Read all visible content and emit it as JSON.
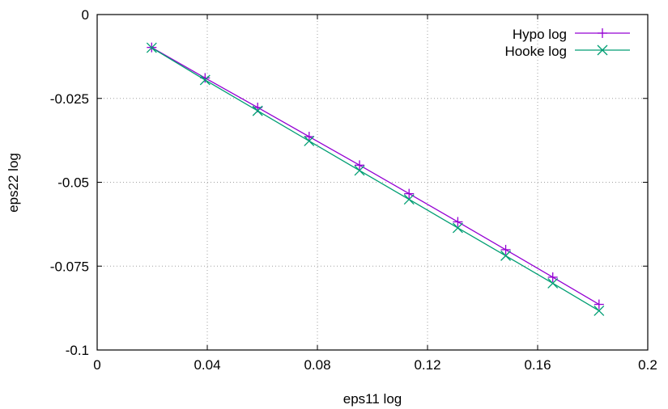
{
  "chart_data": {
    "type": "line",
    "xlabel": "eps11 log",
    "ylabel": "eps22 log",
    "xlim": [
      0,
      0.2
    ],
    "ylim": [
      -0.1,
      0
    ],
    "x_ticks": [
      0,
      0.04,
      0.08,
      0.12,
      0.16,
      0.2
    ],
    "x_tick_labels": [
      "0",
      "0.04",
      "0.08",
      "0.12",
      "0.16",
      "0.2"
    ],
    "y_ticks": [
      0,
      -0.025,
      -0.05,
      -0.075,
      -0.1
    ],
    "y_tick_labels": [
      "0",
      "-0.025",
      "-0.05",
      "-0.075",
      "-0.1"
    ],
    "grid": true,
    "legend_position": "top-right",
    "series": [
      {
        "name": "Hypo log",
        "color": "#9400d3",
        "marker": "plus",
        "x": [
          0.0198,
          0.0392,
          0.0583,
          0.077,
          0.0953,
          0.1133,
          0.131,
          0.1484,
          0.1655,
          0.1823
        ],
        "y": [
          -0.0098,
          -0.0189,
          -0.0277,
          -0.0364,
          -0.0449,
          -0.0534,
          -0.0618,
          -0.0701,
          -0.0783,
          -0.0864
        ]
      },
      {
        "name": "Hooke log",
        "color": "#009e73",
        "marker": "cross",
        "x": [
          0.0198,
          0.0392,
          0.0583,
          0.077,
          0.0953,
          0.1133,
          0.131,
          0.1484,
          0.1655,
          0.1823
        ],
        "y": [
          -0.0099,
          -0.0195,
          -0.0287,
          -0.0377,
          -0.0465,
          -0.0551,
          -0.0636,
          -0.0719,
          -0.0801,
          -0.0883
        ]
      }
    ]
  }
}
